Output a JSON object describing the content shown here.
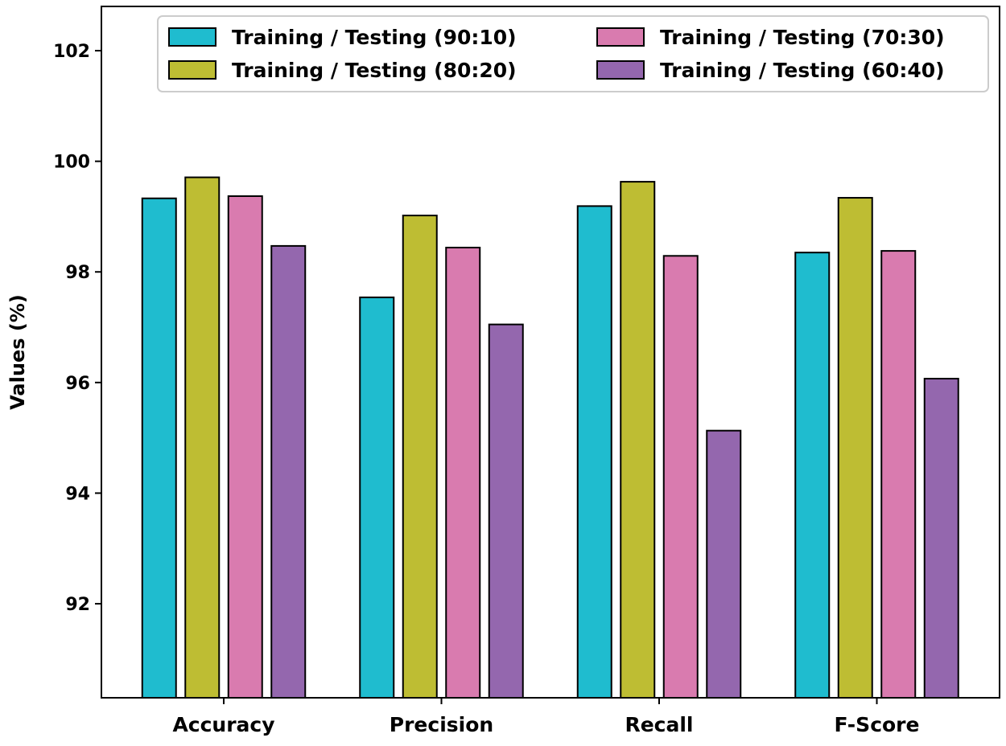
{
  "chart_data": {
    "type": "bar",
    "title": "",
    "xlabel": "",
    "ylabel": "Values (%)",
    "ylim": [
      90.3,
      102.8
    ],
    "yticks": [
      92,
      94,
      96,
      98,
      100,
      102
    ],
    "grid": false,
    "legend_position": "top-right",
    "categories": [
      "Accuracy",
      "Precision",
      "Recall",
      "F-Score"
    ],
    "series": [
      {
        "name": "Training / Testing (90:10)",
        "color": "#1FBCCF",
        "values": [
          99.33,
          97.54,
          99.19,
          98.35
        ]
      },
      {
        "name": "Training / Testing (80:20)",
        "color": "#BEBD33",
        "values": [
          99.71,
          99.02,
          99.63,
          99.34
        ]
      },
      {
        "name": "Training / Testing (70:30)",
        "color": "#D97BAF",
        "values": [
          99.37,
          98.44,
          98.29,
          98.38
        ]
      },
      {
        "name": "Training / Testing (60:40)",
        "color": "#9467AE",
        "values": [
          98.47,
          97.05,
          95.13,
          96.07
        ]
      }
    ]
  }
}
